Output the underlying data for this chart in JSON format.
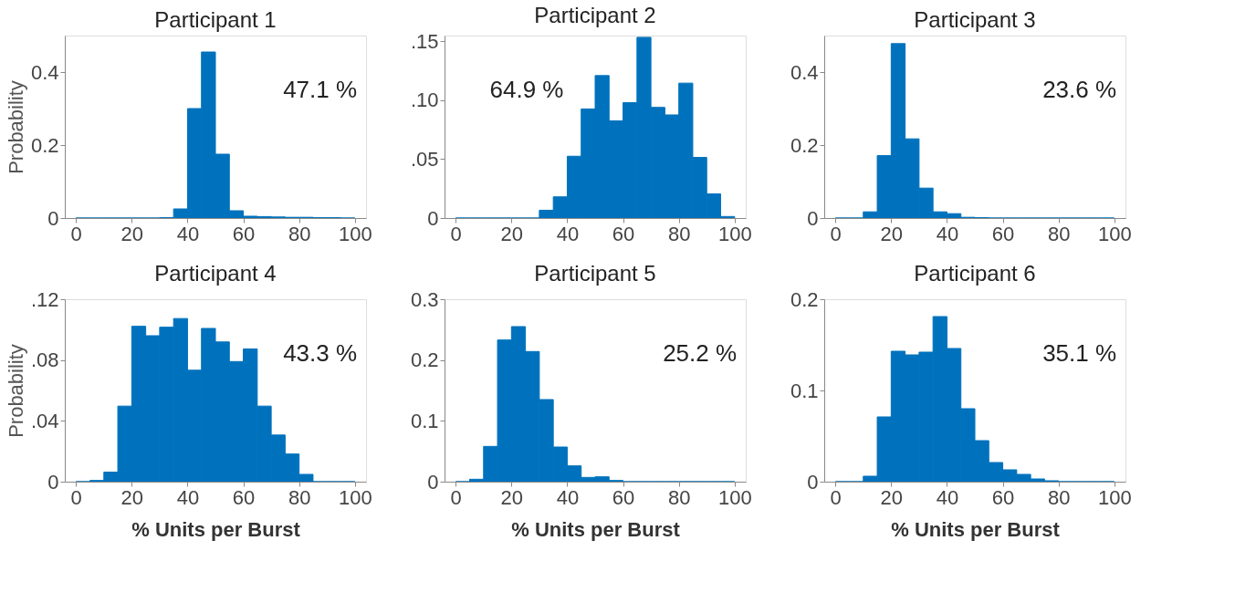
{
  "chart_data": [
    {
      "type": "histogram",
      "title": "Participant 1",
      "ylabel": "Probability",
      "color": "#0072bd",
      "bins": [
        0,
        5,
        10,
        15,
        20,
        25,
        30,
        35,
        40,
        45,
        50,
        55,
        60,
        65,
        70,
        75,
        80,
        85,
        90,
        95,
        100
      ],
      "values": [
        0,
        0,
        0,
        0,
        0,
        0,
        0.001,
        0.025,
        0.3,
        0.455,
        0.175,
        0.02,
        0.005,
        0.004,
        0.003,
        0.002,
        0.002,
        0.001,
        0.001,
        0
      ],
      "xlim": [
        -4,
        104
      ],
      "ylim": [
        0,
        0.5
      ],
      "xticks": [
        0,
        20,
        40,
        60,
        80,
        100
      ],
      "yticks": [
        0,
        0.2,
        0.4
      ],
      "annotations": [
        "47.1 %"
      ],
      "grid": false
    },
    {
      "type": "histogram",
      "title": "Participant 2",
      "color": "#0072bd",
      "bins": [
        0,
        5,
        10,
        15,
        20,
        25,
        30,
        35,
        40,
        45,
        50,
        55,
        60,
        65,
        70,
        75,
        80,
        85,
        90,
        95,
        100
      ],
      "values": [
        0,
        0,
        0,
        0,
        0,
        0,
        0.0066,
        0.018,
        0.0525,
        0.0927,
        0.121,
        0.0826,
        0.098,
        0.1535,
        0.094,
        0.0876,
        0.1146,
        0.0515,
        0.0205,
        0.0013
      ],
      "xlim": [
        -4,
        104
      ],
      "ylim": [
        0,
        0.155
      ],
      "xticks": [
        0,
        20,
        40,
        60,
        80,
        100
      ],
      "yticks": [
        0,
        {
          "value": 0.05,
          "label": ".05"
        },
        {
          "value": 0.1,
          "label": ".10"
        },
        {
          "value": 0.15,
          "label": ".15"
        }
      ],
      "annotations": [
        "64.9 %"
      ],
      "grid": false
    },
    {
      "type": "histogram",
      "title": "Participant 3",
      "color": "#0072bd",
      "bins": [
        0,
        5,
        10,
        15,
        20,
        25,
        30,
        35,
        40,
        45,
        50,
        55,
        60,
        65,
        70,
        75,
        80,
        85,
        90,
        95,
        100
      ],
      "values": [
        0,
        0,
        0.017,
        0.171,
        0.478,
        0.217,
        0.082,
        0.017,
        0.012,
        0.002,
        0.001,
        0,
        0,
        0,
        0,
        0,
        0,
        0,
        0,
        0
      ],
      "xlim": [
        -4,
        104
      ],
      "ylim": [
        0,
        0.5
      ],
      "xticks": [
        0,
        20,
        40,
        60,
        80,
        100
      ],
      "yticks": [
        0,
        0.2,
        0.4
      ],
      "annotations": [
        "23.6 %"
      ],
      "grid": false
    },
    {
      "type": "histogram",
      "title": "Participant 4",
      "ylabel": "Probability",
      "xlabel": "% Units per Burst",
      "color": "#0072bd",
      "bins": [
        0,
        5,
        10,
        15,
        20,
        25,
        30,
        35,
        40,
        45,
        50,
        55,
        60,
        65,
        70,
        75,
        80,
        85,
        90,
        95,
        100
      ],
      "values": [
        0,
        0.0008,
        0.0063,
        0.0497,
        0.1022,
        0.096,
        0.1016,
        0.1073,
        0.0733,
        0.1008,
        0.0919,
        0.079,
        0.0873,
        0.0497,
        0.0307,
        0.0182,
        0.0048,
        0,
        0,
        0
      ],
      "xlim": [
        -4,
        104
      ],
      "ylim": [
        0,
        0.12
      ],
      "xticks": [
        0,
        20,
        40,
        60,
        80,
        100
      ],
      "yticks": [
        0,
        {
          "value": 0.04,
          "label": ".04"
        },
        {
          "value": 0.08,
          "label": ".08"
        },
        {
          "value": 0.12,
          "label": ".12"
        }
      ],
      "annotations": [
        "43.3 %"
      ],
      "grid": false
    },
    {
      "type": "histogram",
      "title": "Participant 5",
      "xlabel": "% Units per Burst",
      "color": "#0072bd",
      "bins": [
        0,
        5,
        10,
        15,
        20,
        25,
        30,
        35,
        40,
        45,
        50,
        55,
        60,
        65,
        70,
        75,
        80,
        85,
        90,
        95,
        100
      ],
      "values": [
        0,
        0.004,
        0.058,
        0.233,
        0.255,
        0.214,
        0.135,
        0.057,
        0.026,
        0.007,
        0.008,
        0.002,
        0,
        0,
        0,
        0,
        0,
        0,
        0,
        0
      ],
      "xlim": [
        -4,
        104
      ],
      "ylim": [
        0,
        0.3
      ],
      "xticks": [
        0,
        20,
        40,
        60,
        80,
        100
      ],
      "yticks": [
        0,
        0.1,
        0.2,
        0.3
      ],
      "annotations": [
        "25.2 %"
      ],
      "grid": false
    },
    {
      "type": "histogram",
      "title": "Participant 6",
      "xlabel": "% Units per Burst",
      "color": "#0072bd",
      "bins": [
        0,
        5,
        10,
        15,
        20,
        25,
        30,
        35,
        40,
        45,
        50,
        55,
        60,
        65,
        70,
        75,
        80,
        85,
        90,
        95,
        100
      ],
      "values": [
        0,
        0,
        0.006,
        0.071,
        0.143,
        0.139,
        0.142,
        0.181,
        0.146,
        0.08,
        0.045,
        0.021,
        0.013,
        0.008,
        0.003,
        0.001,
        0,
        0,
        0,
        0
      ],
      "xlim": [
        -4,
        104
      ],
      "ylim": [
        0,
        0.2
      ],
      "xticks": [
        0,
        20,
        40,
        60,
        80,
        100
      ],
      "yticks": [
        0,
        0.1,
        0.2
      ],
      "annotations": [
        "35.1 %"
      ],
      "grid": false
    }
  ]
}
